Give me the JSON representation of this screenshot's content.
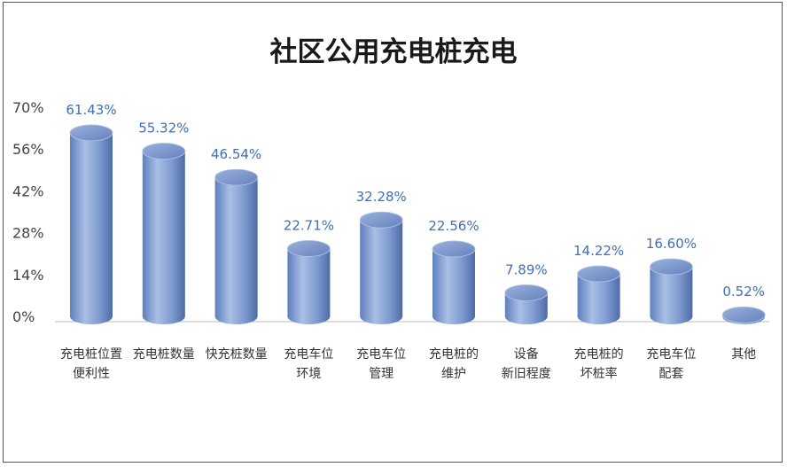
{
  "chart_data": {
    "type": "bar",
    "title": "社区公用充电桩充电",
    "xlabel": "",
    "ylabel": "",
    "ylim": [
      0,
      70
    ],
    "yticks": [
      "0%",
      "14%",
      "28%",
      "42%",
      "56%",
      "70%"
    ],
    "ytick_values": [
      0,
      14,
      28,
      42,
      56,
      70
    ],
    "grid": false,
    "categories": [
      [
        "充电桩位置",
        "便利性"
      ],
      [
        "充电桩数量"
      ],
      [
        "快充桩数量"
      ],
      [
        "充电车位",
        "环境"
      ],
      [
        "充电车位",
        "管理"
      ],
      [
        "充电桩的",
        "维护"
      ],
      [
        "设备",
        "新旧程度"
      ],
      [
        "充电桩的",
        "坏桩率"
      ],
      [
        "充电车位",
        "配套"
      ],
      [
        "其他"
      ]
    ],
    "values": [
      61.43,
      55.32,
      46.54,
      22.71,
      32.28,
      22.56,
      7.89,
      14.22,
      16.6,
      0.52
    ],
    "value_labels": [
      "61.43%",
      "55.32%",
      "46.54%",
      "22.71%",
      "32.28%",
      "22.56%",
      "7.89%",
      "14.22%",
      "16.60%",
      "0.52%"
    ],
    "bar_style": "cylinder",
    "colors": {
      "bar_light": "#a9bfe3",
      "bar_mid": "#7d99cf",
      "bar_dark": "#5472ad",
      "top_light": "#8fa8d8",
      "top_dark": "#6b87c2",
      "value_label": "#3f6fb5",
      "axis": "#bbbbbb"
    }
  }
}
